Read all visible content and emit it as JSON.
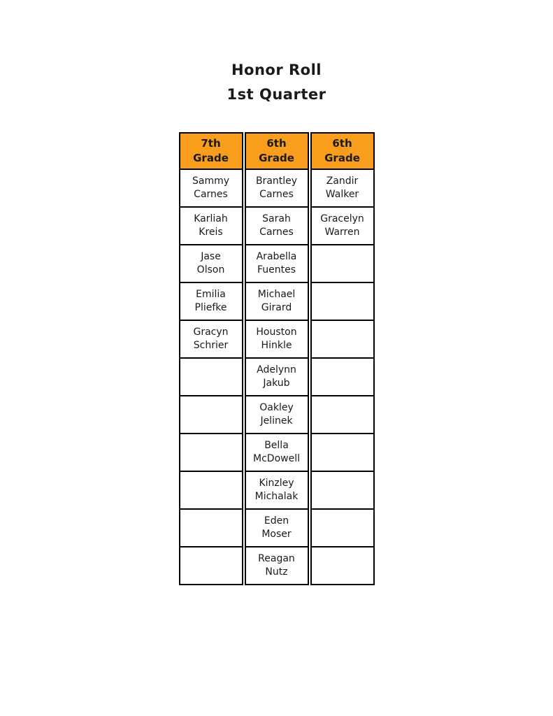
{
  "page": {
    "title_line1": "Honor Roll",
    "title_line2": "1st Quarter"
  },
  "colors": {
    "header_bg": "#F99D1C",
    "border": "#000000"
  },
  "table": {
    "columns": [
      {
        "header": {
          "line1": "7th",
          "line2": "Grade"
        },
        "students": [
          {
            "first": "Sammy",
            "last": "Carnes"
          },
          {
            "first": "Karliah",
            "last": "Kreis"
          },
          {
            "first": "Jase",
            "last": "Olson"
          },
          {
            "first": "Emilia",
            "last": "Pliefke"
          },
          {
            "first": "Gracyn",
            "last": "Schrier"
          },
          {
            "first": "",
            "last": ""
          },
          {
            "first": "",
            "last": ""
          },
          {
            "first": "",
            "last": ""
          },
          {
            "first": "",
            "last": ""
          },
          {
            "first": "",
            "last": ""
          },
          {
            "first": "",
            "last": ""
          }
        ]
      },
      {
        "header": {
          "line1": "6th",
          "line2": "Grade"
        },
        "students": [
          {
            "first": "Brantley",
            "last": "Carnes"
          },
          {
            "first": "Sarah",
            "last": "Carnes"
          },
          {
            "first": "Arabella",
            "last": "Fuentes"
          },
          {
            "first": "Michael",
            "last": "Girard"
          },
          {
            "first": "Houston",
            "last": "Hinkle"
          },
          {
            "first": "Adelynn",
            "last": "Jakub"
          },
          {
            "first": "Oakley",
            "last": "Jelinek"
          },
          {
            "first": "Bella",
            "last": "McDowell"
          },
          {
            "first": "Kinzley",
            "last": "Michalak"
          },
          {
            "first": "Eden",
            "last": "Moser"
          },
          {
            "first": "Reagan",
            "last": "Nutz"
          }
        ]
      },
      {
        "header": {
          "line1": "6th",
          "line2": "Grade"
        },
        "students": [
          {
            "first": "Zandir",
            "last": "Walker"
          },
          {
            "first": "Gracelyn",
            "last": "Warren"
          },
          {
            "first": "",
            "last": ""
          },
          {
            "first": "",
            "last": ""
          },
          {
            "first": "",
            "last": ""
          },
          {
            "first": "",
            "last": ""
          },
          {
            "first": "",
            "last": ""
          },
          {
            "first": "",
            "last": ""
          },
          {
            "first": "",
            "last": ""
          },
          {
            "first": "",
            "last": ""
          },
          {
            "first": "",
            "last": ""
          }
        ]
      }
    ]
  }
}
